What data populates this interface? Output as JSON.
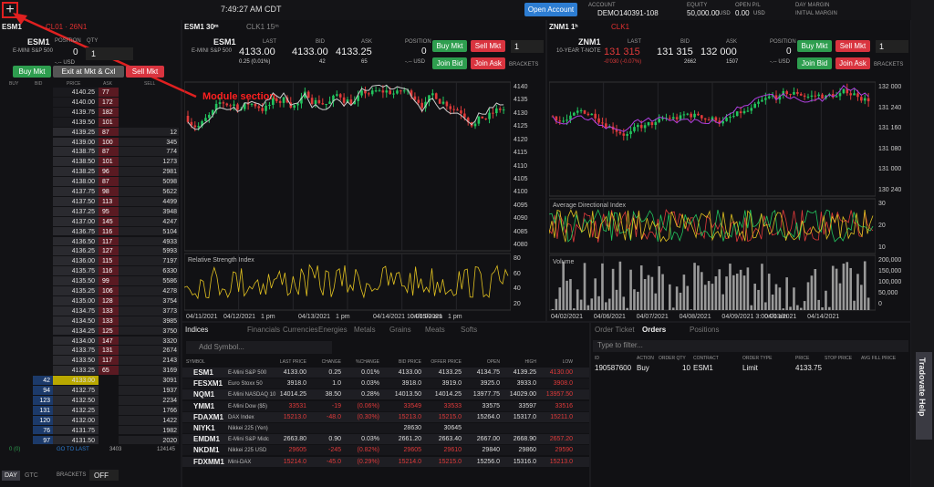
{
  "topbar": {
    "time": "7:49:27 AM CDT",
    "open_account": "Open Account",
    "account_label": "ACCOUNT",
    "account": "DEMO140391-108",
    "equity_label": "EQUITY",
    "equity": "50,000.00",
    "equity_unit": "USD",
    "open_pl_label": "OPEN P/L",
    "open_pl": "0.00",
    "open_pl_unit": "USD",
    "day_margin": "DAY MARGIN",
    "initial_margin": "INITIAL MARGIN"
  },
  "annotation": "Module section",
  "dom": {
    "tabs": [
      "ESM1",
      "CL01 · 26N1"
    ],
    "symbol": "ESM1",
    "description": "E-MINI S&P 500",
    "position_label": "POSITION",
    "qty_label": "QTY",
    "position": "0",
    "qty": "1",
    "pl": "-.-- USD",
    "buttons": [
      "Buy Mkt",
      "Exit at Mkt & Cxl",
      "Sell Mkt"
    ],
    "columns": [
      "BUY",
      "BID",
      "PRICE",
      "ASK",
      "SELL"
    ],
    "rows": [
      [
        null,
        "4140.25",
        "77",
        null
      ],
      [
        null,
        "4140.00",
        "172",
        null
      ],
      [
        null,
        "4139.75",
        "182",
        null
      ],
      [
        null,
        "4139.50",
        "101",
        null
      ],
      [
        null,
        "4139.25",
        "87",
        "12"
      ],
      [
        null,
        "4139.00",
        "100",
        "345"
      ],
      [
        null,
        "4138.75",
        "87",
        "774"
      ],
      [
        null,
        "4138.50",
        "101",
        "1273"
      ],
      [
        null,
        "4138.25",
        "96",
        "2981"
      ],
      [
        null,
        "4138.00",
        "87",
        "5098"
      ],
      [
        null,
        "4137.75",
        "98",
        "5622"
      ],
      [
        null,
        "4137.50",
        "113",
        "4499"
      ],
      [
        null,
        "4137.25",
        "95",
        "3948"
      ],
      [
        null,
        "4137.00",
        "145",
        "4247"
      ],
      [
        null,
        "4136.75",
        "116",
        "5104"
      ],
      [
        null,
        "4136.50",
        "117",
        "4933"
      ],
      [
        null,
        "4136.25",
        "127",
        "5993"
      ],
      [
        null,
        "4136.00",
        "115",
        "7197"
      ],
      [
        null,
        "4135.75",
        "116",
        "6330"
      ],
      [
        null,
        "4135.50",
        "99",
        "5586"
      ],
      [
        null,
        "4135.25",
        "106",
        "4278"
      ],
      [
        null,
        "4135.00",
        "128",
        "3754"
      ],
      [
        null,
        "4134.75",
        "133",
        "3773"
      ],
      [
        null,
        "4134.50",
        "133",
        "3985"
      ],
      [
        null,
        "4134.25",
        "125",
        "3750"
      ],
      [
        null,
        "4134.00",
        "147",
        "3320"
      ],
      [
        null,
        "4133.75",
        "131",
        "2674"
      ],
      [
        null,
        "4133.50",
        "117",
        "2143"
      ],
      [
        null,
        "4133.25",
        "65",
        "3169"
      ],
      [
        "42",
        "4133.00",
        null,
        "3091"
      ],
      [
        "94",
        "4132.75",
        null,
        "1937"
      ],
      [
        "123",
        "4132.50",
        null,
        "2234"
      ],
      [
        "131",
        "4132.25",
        null,
        "1766"
      ],
      [
        "120",
        "4132.00",
        null,
        "1422"
      ],
      [
        "76",
        "4131.75",
        null,
        "1982"
      ],
      [
        "97",
        "4131.50",
        null,
        "2020"
      ]
    ],
    "footer": [
      "0 (0)",
      "GO TO LAST",
      "3403",
      "124145"
    ]
  },
  "bottom_left": {
    "tif": [
      "DAY",
      "GTC"
    ],
    "brackets_label": "BRACKETS",
    "brackets": "OFF"
  },
  "charts": [
    {
      "tabs": [
        "ESM1 30ᵐ",
        "CLK1 15ᵐ"
      ],
      "symbol": "ESM1",
      "description": "E-MINI S&P 500",
      "last_label": "LAST",
      "last": "4133.00",
      "change": "0.25 (0.01%)",
      "bid_label": "BID",
      "bid": "4133.00",
      "bid_size": "42",
      "ask_label": "ASK",
      "ask": "4133.25",
      "ask_size": "65",
      "position_label": "POSITION",
      "position": "0",
      "pl": "-.-- USD",
      "buttons": [
        "Buy Mkt",
        "Sell Mkt",
        "Join Bid",
        "Join Ask"
      ],
      "qty": "1",
      "brackets": "BRACKETS",
      "yticks": [
        "4140",
        "4135",
        "4130",
        "4125",
        "4120",
        "4115",
        "4110",
        "4105",
        "4100",
        "4095",
        "4090",
        "4085",
        "4080"
      ],
      "studies": [
        {
          "title": "Relative Strength Index",
          "ticks": [
            "80",
            "60",
            "40",
            "20"
          ]
        }
      ],
      "xlabels": [
        "04/11/2021",
        "04/12/2021",
        "1 pm",
        "04/13/2021",
        "1 pm",
        "04/14/2021 10:00:00 am",
        "04/15/2021",
        "1 pm"
      ]
    },
    {
      "tabs": [
        "ZNM1 1ʰ",
        "CLK1"
      ],
      "symbol": "ZNM1",
      "description": "10-YEAR T-NOTE",
      "last_label": "LAST",
      "last": "131 315",
      "change": "-0'030 (-0.07%)",
      "bid_label": "BID",
      "bid": "131 315",
      "bid_size": "2662",
      "ask_label": "ASK",
      "ask": "132 000",
      "ask_size": "1507",
      "position_label": "POSITION",
      "position": "0",
      "pl": "-.-- USD",
      "buttons": [
        "Buy Mkt",
        "Sell Mkt",
        "Join Bid",
        "Join Ask"
      ],
      "qty": "1",
      "brackets": "BRACKETS",
      "yticks": [
        "132 000",
        "131 240",
        "131 160",
        "131 080",
        "131 000",
        "130 240"
      ],
      "studies": [
        {
          "title": "Average Directional Index",
          "ticks": [
            "30",
            "20",
            "10"
          ]
        },
        {
          "title": "Volume",
          "ticks": [
            "200,000",
            "150,000",
            "100,000",
            "50,000",
            "0"
          ]
        }
      ],
      "xlabels": [
        "04/02/2021",
        "04/06/2021",
        "04/07/2021",
        "04/08/2021",
        "04/09/2021 3:00:00 am",
        "04/13/2021",
        "04/14/2021"
      ]
    }
  ],
  "indices": {
    "tabs": [
      "Indices",
      "Financials",
      "Currencies",
      "Energies",
      "Metals",
      "Grains",
      "Meats",
      "Softs"
    ],
    "add_symbol": "Add Symbol...",
    "columns": [
      "SYMBOL",
      "LAST PRICE",
      "CHANGE",
      "%CHANGE",
      "BID PRICE",
      "OFFER PRICE",
      "OPEN",
      "HIGH",
      "LOW"
    ],
    "rows": [
      [
        "ESM1",
        "E-Mini S&P 500",
        "4133.00",
        "0.25",
        "0.01%",
        "4133.00",
        "4133.25",
        "4134.75",
        "4139.25",
        "4130.00"
      ],
      [
        "FESXM1",
        "Euro Stoxx 50",
        "3918.0",
        "1.0",
        "0.03%",
        "3918.0",
        "3919.0",
        "3925.0",
        "3933.0",
        "3908.0"
      ],
      [
        "NQM1",
        "E-Mini NASDAQ 10",
        "14014.25",
        "38.50",
        "0.28%",
        "14013.50",
        "14014.25",
        "13977.75",
        "14029.00",
        "13957.50"
      ],
      [
        "YMM1",
        "E-Mini Dow ($5)",
        "33531",
        "-19",
        "(0.06%)",
        "33549",
        "33533",
        "33575",
        "33597",
        "33516"
      ],
      [
        "FDAXM1",
        "DAX Index",
        "15213.0",
        "-48.0",
        "(0.30%)",
        "15213.0",
        "15215.0",
        "15264.0",
        "15317.0",
        "15211.0"
      ],
      [
        "NIYK1",
        "Nikkei 225 (Yen)",
        null,
        null,
        null,
        "28630",
        "30645",
        null,
        null,
        null
      ],
      [
        "EMDM1",
        "E-Mini S&P Midc",
        "2663.80",
        "0.90",
        "0.03%",
        "2661.20",
        "2663.40",
        "2667.00",
        "2668.90",
        "2657.20"
      ],
      [
        "NKDM1",
        "Nikkei 225 USD",
        "29605",
        "-245",
        "(0.82%)",
        "29605",
        "29610",
        "29840",
        "29860",
        "29590"
      ],
      [
        "FDXMM1",
        "Mini-DAX",
        "15214.0",
        "-45.0",
        "(0.29%)",
        "15214.0",
        "15215.0",
        "15256.0",
        "15316.0",
        "15213.0"
      ]
    ]
  },
  "orders": {
    "tabs": [
      "Order Ticket",
      "Orders",
      "Positions"
    ],
    "filter": "Type to filter...",
    "columns": [
      "ID",
      "ACTION",
      "ORDER QTY",
      "CONTRACT",
      "ORDER TYPE",
      "PRICE",
      "STOP PRICE",
      "AVG FILL PRICE"
    ],
    "rows": [
      [
        "190587600",
        "Buy",
        "10",
        "ESM1",
        "Limit",
        "4133.75"
      ]
    ]
  },
  "help": "Tradovate Help"
}
